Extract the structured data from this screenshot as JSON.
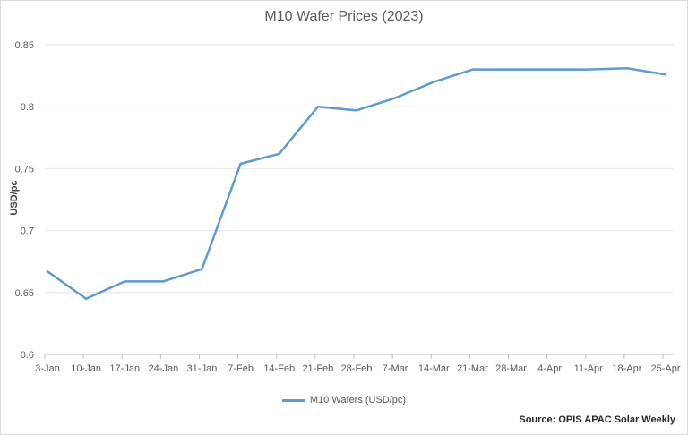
{
  "chart_data": {
    "type": "line",
    "title": "M10 Wafer Prices (2023)",
    "xlabel": "",
    "ylabel": "USD/pc",
    "ylim": [
      0.6,
      0.85
    ],
    "yticks": [
      "0.6",
      "0.65",
      "0.7",
      "0.75",
      "0.8",
      "0.85"
    ],
    "grid": true,
    "legend_position": "bottom",
    "categories": [
      "3-Jan",
      "10-Jan",
      "17-Jan",
      "24-Jan",
      "31-Jan",
      "7-Feb",
      "14-Feb",
      "21-Feb",
      "28-Feb",
      "7-Mar",
      "14-Mar",
      "21-Mar",
      "28-Mar",
      "4-Apr",
      "11-Apr",
      "18-Apr",
      "25-Apr"
    ],
    "series": [
      {
        "name": "M10 Wafers (USD/pc)",
        "color": "#5b9bd5",
        "values": [
          0.667,
          0.645,
          0.659,
          0.659,
          0.669,
          0.754,
          0.762,
          0.8,
          0.797,
          0.807,
          0.82,
          0.83,
          0.83,
          0.83,
          0.83,
          0.831,
          0.826
        ]
      }
    ],
    "source": "Source: OPIS APAC Solar Weekly"
  }
}
